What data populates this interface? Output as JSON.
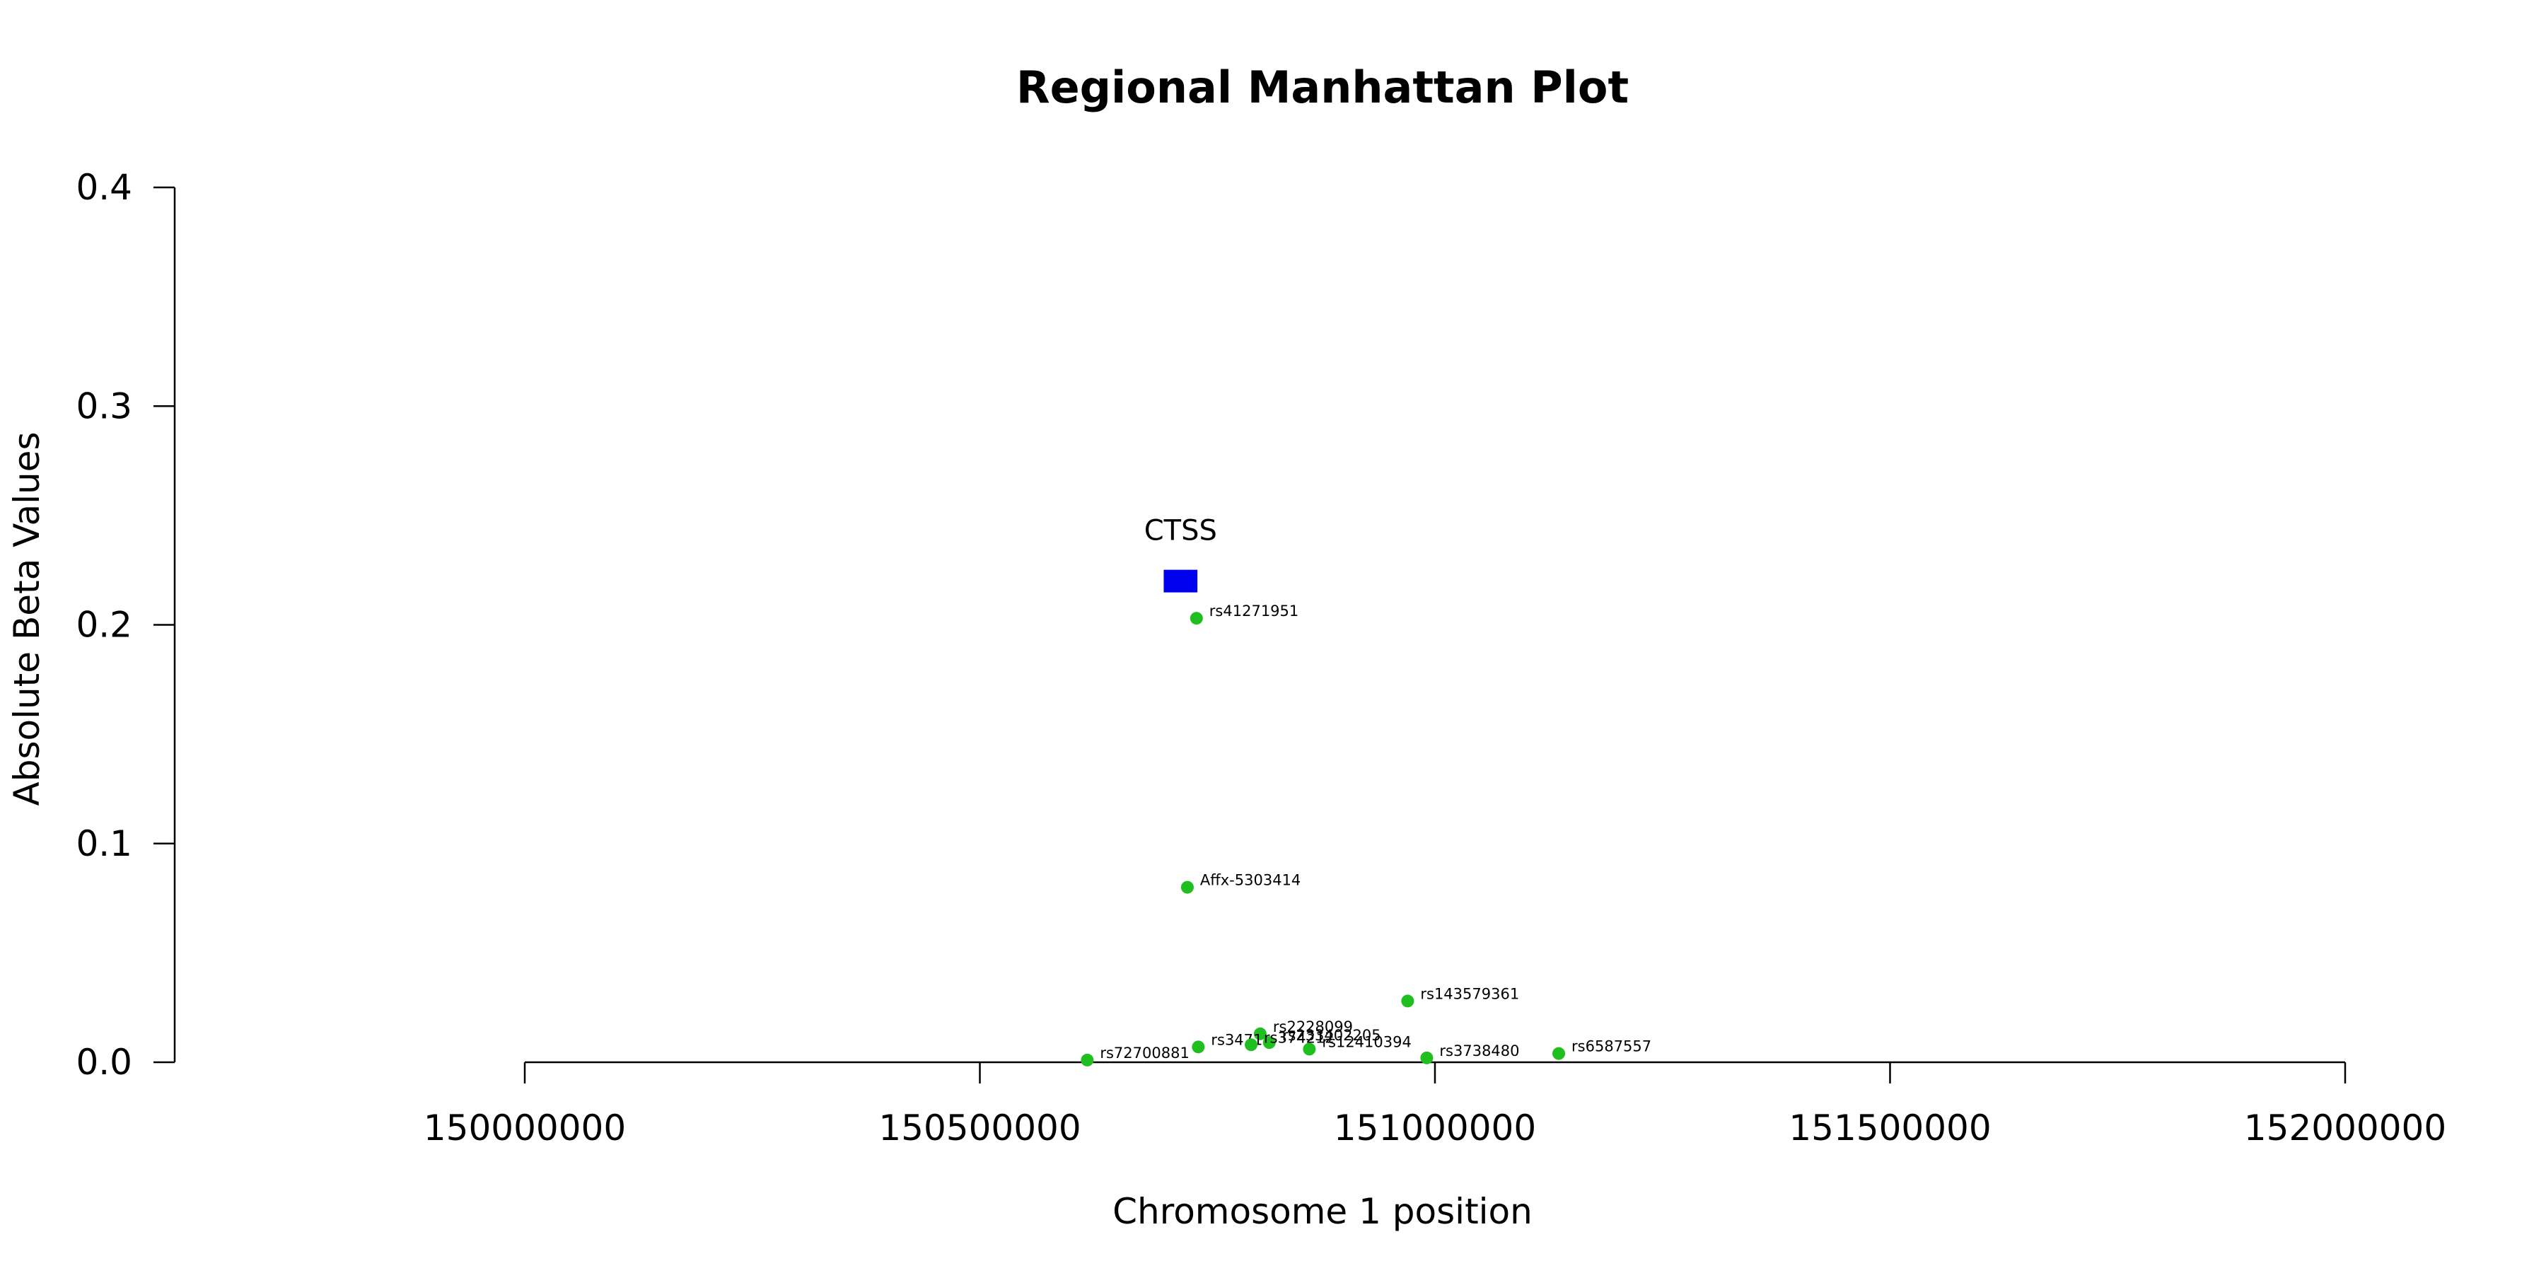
{
  "chart_data": {
    "type": "scatter",
    "title": "Regional Manhattan Plot",
    "xlabel": "Chromosome 1 position",
    "ylabel": "Absolute Beta Values",
    "xlim": [
      150000000,
      152000000
    ],
    "ylim": [
      0,
      0.4
    ],
    "x_ticks": [
      150000000,
      150500000,
      151000000,
      151500000,
      152000000
    ],
    "x_tick_labels": [
      "150000000",
      "150500000",
      "151000000",
      "151500000",
      "152000000"
    ],
    "y_ticks": [
      0,
      0.1,
      0.2,
      0.3,
      0.4
    ],
    "y_tick_labels": [
      "0.0",
      "0.1",
      "0.2",
      "0.3",
      "0.4"
    ],
    "grid": false,
    "point_color": "#1fbf1f",
    "gene_color": "#0000ee",
    "gene": {
      "name": "CTSS",
      "start": 150702000,
      "end": 150739000,
      "y": 0.22
    },
    "points": [
      {
        "label": "rs41271951",
        "x": 150738000,
        "y": 0.203
      },
      {
        "label": "Affx-5303414",
        "x": 150728000,
        "y": 0.08
      },
      {
        "label": "rs143579361",
        "x": 150970000,
        "y": 0.028
      },
      {
        "label": "rs2228099",
        "x": 150808000,
        "y": 0.013
      },
      {
        "label": "rs233402205",
        "x": 150818000,
        "y": 0.009
      },
      {
        "label": "rs3471",
        "x": 150740000,
        "y": 0.007
      },
      {
        "label": "rs374212",
        "x": 150798000,
        "y": 0.008
      },
      {
        "label": "rs12410394",
        "x": 150862000,
        "y": 0.006
      },
      {
        "label": "rs3738480",
        "x": 150991000,
        "y": 0.002
      },
      {
        "label": "rs6587557",
        "x": 151136000,
        "y": 0.004
      },
      {
        "label": "rs72700881",
        "x": 150618000,
        "y": 0.001
      }
    ]
  }
}
